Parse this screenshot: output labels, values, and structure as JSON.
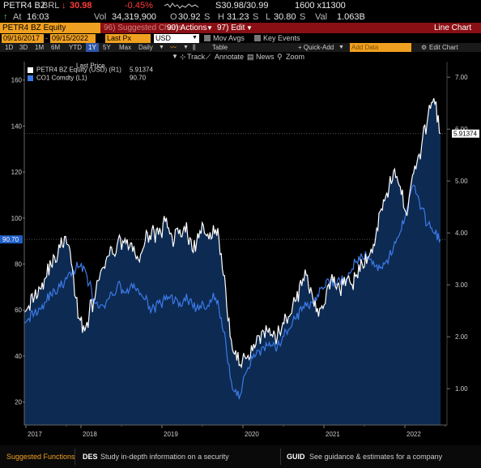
{
  "quote": {
    "ticker": "PETR4 BZ",
    "currency": "BRL",
    "last_price": "30.98",
    "pct_change": "-0.45%",
    "bid_ask": "S30.98/30.99",
    "bid_ask_suffix": "S",
    "size": "1600 x11300",
    "at_label": "At",
    "time": "16:03",
    "vol_label": "Vol",
    "volume": "34,319,900",
    "open_label": "O",
    "open": "30.92",
    "open_suffix": "S",
    "high_label": "H",
    "high": "31.23",
    "high_suffix": "S",
    "low_label": "L",
    "low": "30.80",
    "low_suffix": "S",
    "val_label": "Val",
    "value": "1.063B"
  },
  "command_bar": {
    "security": "PETR4 BZ Equity",
    "suggested": "96) Suggested Charts",
    "actions": "90) Actions",
    "edit": "97) Edit",
    "title": "Line Chart"
  },
  "date_row": {
    "start": "09/16/2017",
    "end": "09/15/2022",
    "field": "Last Px",
    "currency": "USD",
    "mov_avgs": "Mov Avgs",
    "key_events": "Key Events"
  },
  "periods": {
    "items": [
      "1D",
      "3D",
      "1M",
      "6M",
      "YTD",
      "1Y",
      "5Y",
      "Max"
    ],
    "selected": "1Y",
    "frequency": "Daily",
    "table": "Table",
    "quick_add": "+ Quick-Add",
    "add_data": "Add Data",
    "edit_chart": "Edit Chart"
  },
  "toolbar": {
    "track": "Track",
    "annotate": "Annotate",
    "news": "News",
    "zoom": "Zoom"
  },
  "legend": {
    "header": "Last Price",
    "series1_name": "PETR4 BZ Equity (USD)  (R1)",
    "series1_value": "5.91374",
    "series2_name": "CO1 Comdty  (L1)",
    "series2_value": "90.70"
  },
  "colors": {
    "petr4": "#ffffff",
    "co1": "#3b7ae8",
    "fill": "#0d2a52",
    "accent": "#f0a020",
    "bar": "#8a0f14"
  },
  "chart_data": {
    "type": "line",
    "x_labels": [
      "2017",
      "2018",
      "2019",
      "2020",
      "2021",
      "2022"
    ],
    "left_axis": {
      "ticks": [
        20,
        40,
        60,
        80,
        100,
        120,
        140,
        160
      ],
      "range": [
        10,
        168
      ]
    },
    "right_axis": {
      "ticks": [
        "1.00",
        "2.00",
        "3.00",
        "4.00",
        "5.00",
        "6.00",
        "7.00"
      ],
      "range": [
        0.3,
        7.3
      ]
    },
    "left_marker": "90.70",
    "right_marker": "5.91374",
    "series": [
      {
        "name": "PETR4 BZ Equity (USD)",
        "axis": "right",
        "values": [
          2.6,
          2.7,
          2.9,
          3.1,
          3.4,
          3.6,
          3.9,
          3.5,
          2.4,
          2.1,
          2.6,
          3.0,
          3.4,
          3.6,
          3.8,
          3.9,
          3.7,
          3.5,
          3.8,
          4.1,
          3.9,
          4.2,
          3.9,
          4.0,
          4.1,
          3.7,
          3.9,
          4.1,
          4.0,
          3.9,
          2.8,
          1.7,
          1.5,
          1.6,
          1.8,
          2.0,
          2.1,
          1.9,
          2.1,
          2.3,
          2.6,
          2.9,
          3.2,
          2.8,
          2.5,
          2.8,
          3.1,
          2.9,
          3.2,
          3.0,
          3.3,
          3.5,
          3.7,
          4.4,
          4.8,
          5.1,
          4.9,
          4.4,
          5.2,
          5.5,
          6.2,
          6.7,
          5.91374
        ]
      },
      {
        "name": "CO1 Comdty",
        "axis": "left",
        "values": [
          56,
          58,
          60,
          63,
          67,
          69,
          72,
          76,
          79,
          78,
          68,
          60,
          62,
          66,
          71,
          68,
          70,
          69,
          64,
          61,
          62,
          64,
          66,
          62,
          65,
          63,
          60,
          62,
          66,
          61,
          45,
          25,
          22,
          33,
          40,
          42,
          44,
          43,
          45,
          50,
          55,
          59,
          62,
          64,
          69,
          72,
          71,
          73,
          74,
          79,
          82,
          84,
          80,
          78,
          82,
          86,
          94,
          105,
          115,
          105,
          98,
          95,
          90.7
        ]
      }
    ]
  },
  "bottom": {
    "suggested": "Suggested Functions",
    "des_code": "DES",
    "des_text": "Study in-depth information on a security",
    "guid_code": "GUID",
    "guid_text": "See guidance & estimates for a company"
  }
}
